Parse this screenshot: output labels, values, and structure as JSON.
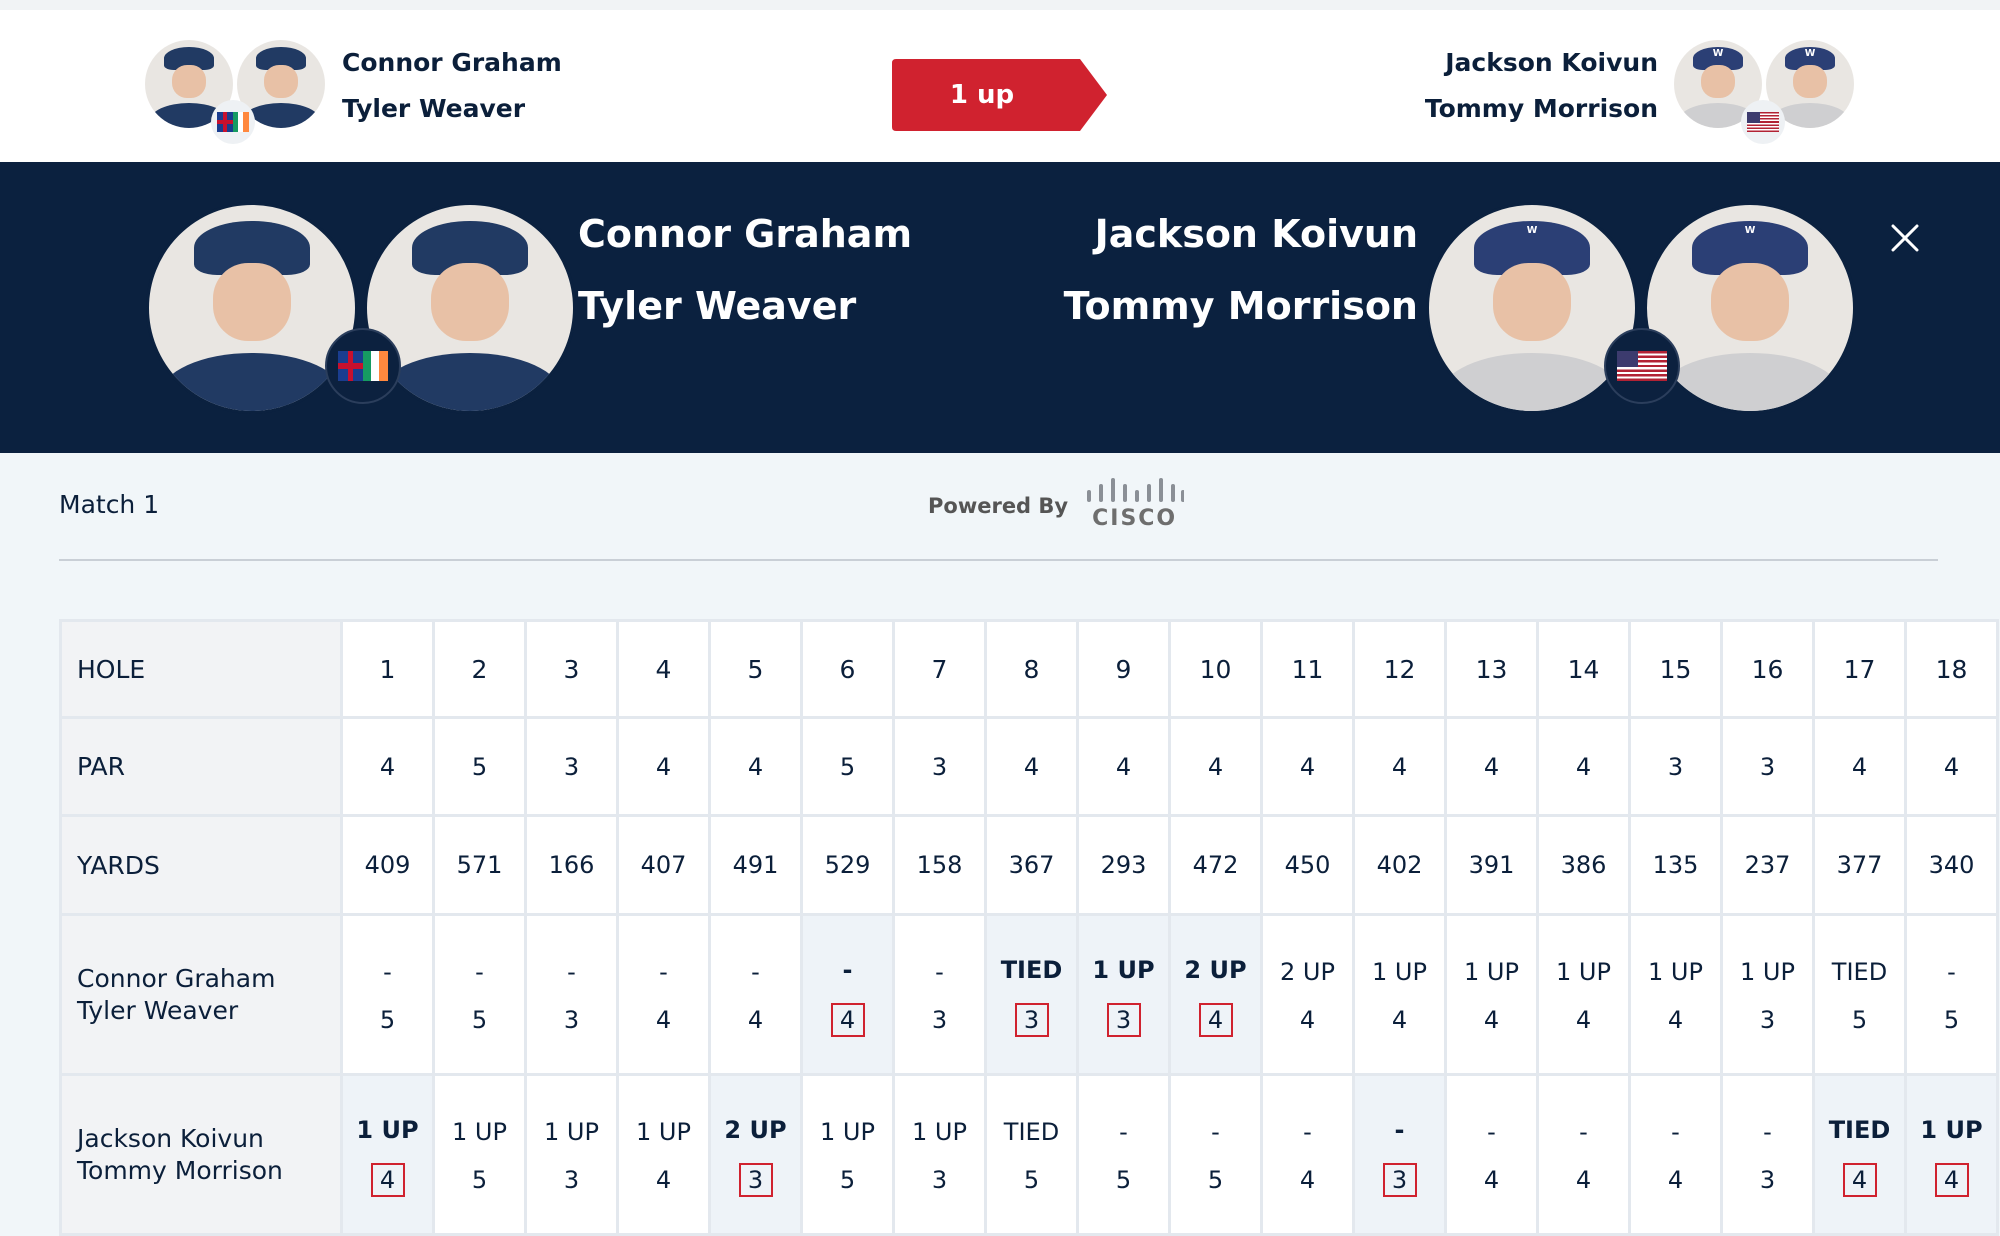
{
  "match_status": {
    "label": "1 up",
    "color": "#d0222f"
  },
  "team_left": {
    "players": [
      "Connor Graham",
      "Tyler Weaver"
    ],
    "flag": "gb-ie-flag"
  },
  "team_right": {
    "players": [
      "Jackson Koivun",
      "Tommy Morrison"
    ],
    "flag": "us-flag"
  },
  "match_label": "Match 1",
  "powered_by": {
    "label": "Powered By",
    "brand": "CISCO"
  },
  "scorecard": {
    "headers": {
      "hole": "HOLE",
      "par": "PAR",
      "yards": "YARDS"
    },
    "holes": [
      "1",
      "2",
      "3",
      "4",
      "5",
      "6",
      "7",
      "8",
      "9",
      "10",
      "11",
      "12",
      "13",
      "14",
      "15",
      "16",
      "17",
      "18"
    ],
    "par": [
      "4",
      "5",
      "3",
      "4",
      "4",
      "5",
      "3",
      "4",
      "4",
      "4",
      "4",
      "4",
      "4",
      "4",
      "3",
      "3",
      "4",
      "4"
    ],
    "yards": [
      "409",
      "571",
      "166",
      "407",
      "491",
      "529",
      "158",
      "367",
      "293",
      "472",
      "450",
      "402",
      "391",
      "386",
      "135",
      "237",
      "377",
      "340"
    ],
    "team_left_row": {
      "status": [
        "-",
        "-",
        "-",
        "-",
        "-",
        "-",
        "-",
        "TIED",
        "1 UP",
        "2 UP",
        "2 UP",
        "1 UP",
        "1 UP",
        "1 UP",
        "1 UP",
        "1 UP",
        "TIED",
        "-"
      ],
      "score": [
        "5",
        "5",
        "3",
        "4",
        "4",
        "4",
        "3",
        "3",
        "3",
        "4",
        "4",
        "4",
        "4",
        "4",
        "4",
        "3",
        "5",
        "5"
      ],
      "won_hole": [
        false,
        false,
        false,
        false,
        false,
        true,
        false,
        true,
        true,
        true,
        false,
        false,
        false,
        false,
        false,
        false,
        false,
        false
      ]
    },
    "team_right_row": {
      "status": [
        "1 UP",
        "1 UP",
        "1 UP",
        "1 UP",
        "2 UP",
        "1 UP",
        "1 UP",
        "TIED",
        "-",
        "-",
        "-",
        "-",
        "-",
        "-",
        "-",
        "-",
        "TIED",
        "1 UP"
      ],
      "score": [
        "4",
        "5",
        "3",
        "4",
        "3",
        "5",
        "3",
        "5",
        "5",
        "5",
        "4",
        "3",
        "4",
        "4",
        "4",
        "3",
        "4",
        "4"
      ],
      "won_hole": [
        true,
        false,
        false,
        false,
        true,
        false,
        false,
        false,
        false,
        false,
        false,
        true,
        false,
        false,
        false,
        false,
        true,
        true
      ]
    }
  },
  "colors": {
    "navy": "#0b213f",
    "accent_red": "#d0222f",
    "background": "#f1f6f9"
  }
}
